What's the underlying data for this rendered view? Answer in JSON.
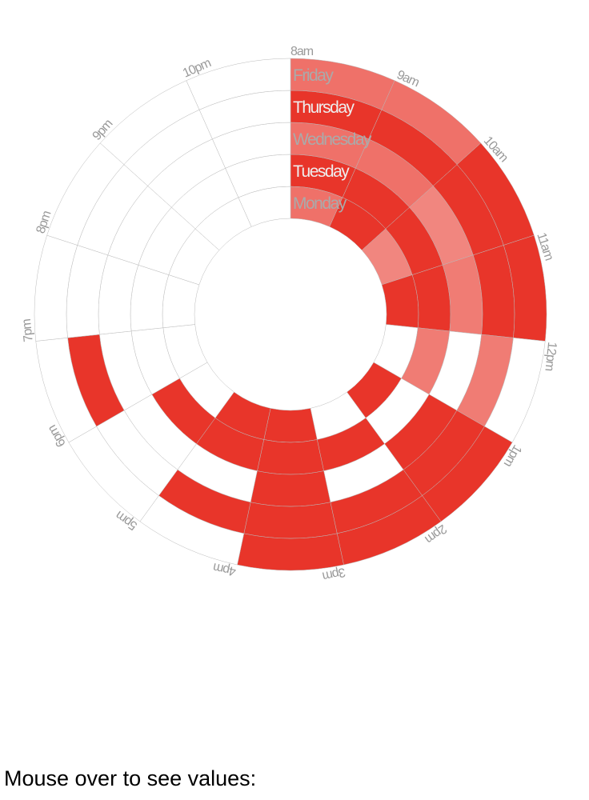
{
  "chart_data": {
    "type": "radial-heatmap",
    "title": "",
    "segments": [
      "8am",
      "9am",
      "10am",
      "11am",
      "12pm",
      "1pm",
      "2pm",
      "3pm",
      "4pm",
      "5pm",
      "6pm",
      "7pm",
      "8pm",
      "9pm",
      "10pm"
    ],
    "rings": [
      "Monday",
      "Tuesday",
      "Wednesday",
      "Thursday",
      "Friday"
    ],
    "values": [
      [
        0.7,
        1,
        0.6,
        1,
        0,
        1,
        0,
        1,
        1,
        0,
        0,
        0,
        0,
        0,
        0
      ],
      [
        1,
        1,
        1,
        1,
        0.65,
        0,
        1,
        1,
        1,
        1,
        0,
        0,
        0,
        0,
        0
      ],
      [
        0.7,
        0.7,
        0.6,
        0.65,
        0,
        1,
        0,
        1,
        0,
        0,
        0,
        0,
        0,
        0,
        0
      ],
      [
        1,
        1,
        1,
        1,
        0.65,
        1,
        1,
        1,
        1,
        0,
        1,
        0,
        0,
        0,
        0
      ],
      [
        0.7,
        0.7,
        1,
        1,
        0,
        1,
        1,
        1,
        0,
        0,
        0,
        0,
        0,
        0,
        0
      ]
    ],
    "colors": {
      "fill": "#e8352a",
      "grid": "#bbbbbb",
      "tick_label": "#999999",
      "ring_label_dark": "#eeeeee",
      "ring_label_light": "#aaaaaa"
    }
  },
  "caption": "Mouse over to see values:"
}
